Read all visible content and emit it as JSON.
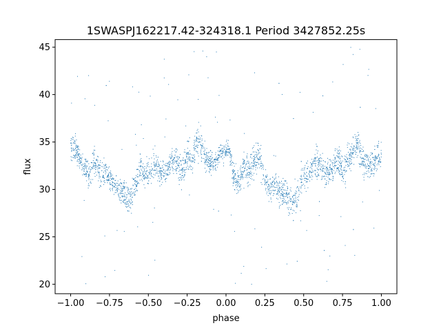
{
  "chart_data": {
    "type": "scatter",
    "title": "1SWASPJ162217.42-324318.1 Period 3427852.25s",
    "xlabel": "phase",
    "ylabel": "flux",
    "xlim": [
      -1.1,
      1.1
    ],
    "ylim": [
      19.0,
      45.8
    ],
    "xticks": [
      -1.0,
      -0.75,
      -0.5,
      -0.25,
      0.0,
      0.25,
      0.5,
      0.75,
      1.0
    ],
    "xtick_labels": [
      "−1.00",
      "−0.75",
      "−0.50",
      "−0.25",
      "0.00",
      "0.25",
      "0.50",
      "0.75",
      "1.00"
    ],
    "yticks": [
      20,
      25,
      30,
      35,
      40,
      45
    ],
    "ytick_labels": [
      "20",
      "25",
      "30",
      "35",
      "40",
      "45"
    ],
    "grid": false,
    "legend": "none",
    "point_color": "#1f77b4",
    "series": [
      {
        "x": [
          -0.98,
          -0.95,
          -0.92,
          -0.88,
          -0.85,
          -0.82,
          -0.78,
          -0.75,
          -0.72,
          -0.68,
          -0.65,
          -0.62,
          -0.58,
          -0.55,
          -0.52,
          -0.48,
          -0.45,
          -0.42,
          -0.38,
          -0.35,
          -0.32,
          -0.28,
          -0.25,
          -0.22,
          -0.18,
          -0.15,
          -0.12,
          -0.08,
          -0.05,
          -0.02,
          0.02,
          0.05,
          0.08,
          0.12,
          0.15,
          0.18,
          0.22,
          0.25,
          0.28,
          0.32,
          0.35,
          0.38,
          0.42,
          0.45,
          0.48,
          0.52,
          0.55,
          0.58,
          0.62,
          0.65,
          0.68,
          0.72,
          0.75,
          0.78,
          0.82,
          0.85,
          0.88,
          0.92,
          0.95,
          0.98
        ],
        "y": [
          34.5,
          33.8,
          32.5,
          31.5,
          33.0,
          32.0,
          31.8,
          31.2,
          30.5,
          30.0,
          29.5,
          28.8,
          30.5,
          32.5,
          31.5,
          32.0,
          32.8,
          31.5,
          32.2,
          33.0,
          32.8,
          32.0,
          33.5,
          33.2,
          35.5,
          33.8,
          33.0,
          32.8,
          33.5,
          33.8,
          34.2,
          31.5,
          30.8,
          32.5,
          32.0,
          33.0,
          33.5,
          31.0,
          30.0,
          30.5,
          29.8,
          29.5,
          28.5,
          29.0,
          30.5,
          31.5,
          32.5,
          33.0,
          32.0,
          31.5,
          32.2,
          33.0,
          32.0,
          33.0,
          34.5,
          34.8,
          33.0,
          32.5,
          32.8,
          33.5
        ],
        "spread": [
          1.8,
          1.5,
          1.5,
          1.8,
          2.0,
          2.0,
          2.0,
          1.8,
          1.5,
          1.5,
          1.8,
          2.0,
          2.0,
          2.0,
          1.8,
          1.8,
          1.8,
          1.8,
          1.5,
          1.8,
          1.8,
          2.0,
          2.0,
          2.0,
          2.2,
          2.0,
          1.8,
          1.5,
          1.5,
          1.5,
          1.5,
          1.8,
          1.8,
          2.0,
          2.0,
          2.0,
          2.0,
          1.8,
          1.8,
          1.8,
          1.8,
          2.0,
          2.0,
          2.0,
          2.0,
          2.0,
          2.0,
          2.0,
          1.8,
          1.8,
          1.8,
          2.0,
          2.0,
          2.2,
          2.2,
          2.2,
          2.0,
          1.8,
          1.8,
          1.8
        ]
      }
    ]
  }
}
